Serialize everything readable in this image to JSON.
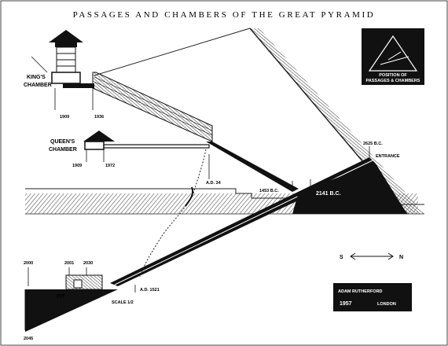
{
  "title": "PASSAGES AND CHAMBERS OF THE GREAT PYRAMID",
  "inset": {
    "line1": "POSITION OF",
    "line2": "PASSAGES & CHAMBERS"
  },
  "chambers": {
    "kings_line1": "KING'S",
    "kings_line2": "CHAMBER",
    "queens_line1": "QUEEN'S",
    "queens_line2": "CHAMBER",
    "pit": "PIT"
  },
  "dates": {
    "kings_a": "1909",
    "kings_b": "1936",
    "queens_a": "1909",
    "queens_b": "1972",
    "ad_34": "A.D. 34",
    "bc_1453": "1453 B.C.",
    "bc_2141": "2141 B.C.",
    "bc_2625": "2625 B.C.",
    "entrance": "ENTRANCE",
    "ad_1521": "A.D. 1521",
    "pit_2000": "2000",
    "pit_2001": "2001",
    "pit_2030": "2030",
    "bottom_2045": "2045",
    "scale": "SCALE 1/2"
  },
  "compass": {
    "south": "S",
    "north": "N"
  },
  "credit": {
    "name": "ADAM RUTHERFORD",
    "year": "1957",
    "city": "LONDON"
  },
  "colors": {
    "ink": "#111111",
    "paper": "#ffffff",
    "ground": "#6a6a6a"
  }
}
